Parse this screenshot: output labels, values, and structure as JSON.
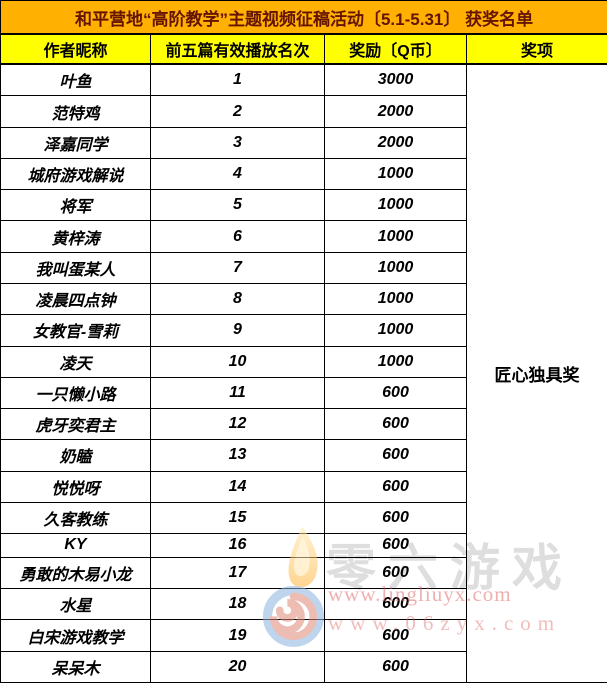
{
  "title": "和平营地“高阶教学”主题视频征稿活动〔5.1-5.31〕 获奖名单",
  "columns": [
    "作者昵称",
    "前五篇有效播放名次",
    "奖励〔Q币〕",
    "奖项"
  ],
  "award": "匠心独具奖",
  "rows": [
    {
      "name": "叶鱼",
      "rank": "1",
      "reward": "3000"
    },
    {
      "name": "范特鸡",
      "rank": "2",
      "reward": "2000"
    },
    {
      "name": "泽嘉同学",
      "rank": "3",
      "reward": "2000"
    },
    {
      "name": "城府游戏解说",
      "rank": "4",
      "reward": "1000"
    },
    {
      "name": "将军",
      "rank": "5",
      "reward": "1000"
    },
    {
      "name": "黄梓涛",
      "rank": "6",
      "reward": "1000"
    },
    {
      "name": "我叫蛋某人",
      "rank": "7",
      "reward": "1000"
    },
    {
      "name": "凌晨四点钟",
      "rank": "8",
      "reward": "1000"
    },
    {
      "name": "女教官-雪莉",
      "rank": "9",
      "reward": "1000"
    },
    {
      "name": "凌天",
      "rank": "10",
      "reward": "1000"
    },
    {
      "name": "一只懒小路",
      "rank": "11",
      "reward": "600"
    },
    {
      "name": "虎牙奕君主",
      "rank": "12",
      "reward": "600"
    },
    {
      "name": "奶瞌",
      "rank": "13",
      "reward": "600"
    },
    {
      "name": "悦悦呀",
      "rank": "14",
      "reward": "600"
    },
    {
      "name": "久客教练",
      "rank": "15",
      "reward": "600"
    },
    {
      "name": "KY",
      "rank": "16",
      "reward": "600"
    },
    {
      "name": "勇敢的木易小龙",
      "rank": "17",
      "reward": "600"
    },
    {
      "name": "水星",
      "rank": "18",
      "reward": "600"
    },
    {
      "name": "白宋游戏教学",
      "rank": "19",
      "reward": "600"
    },
    {
      "name": "呆呆木",
      "rank": "20",
      "reward": "600"
    }
  ],
  "watermark": {
    "brand": "零六游戏",
    "url1": "www.lingliuyx.com",
    "url2": "www.06zyx.com",
    "logo": "flame-spiral-logo-icon"
  },
  "colors": {
    "title_bg": "#ffb000",
    "title_text": "#641400",
    "header_bg": "#ffff00",
    "border": "#000000",
    "watermark_red": "#de5f5f",
    "watermark_gray": "#dedede",
    "logo_flame": "#ffb338",
    "logo_spiral_blue": "#8ab4e0",
    "logo_spiral_red": "#e08878"
  }
}
